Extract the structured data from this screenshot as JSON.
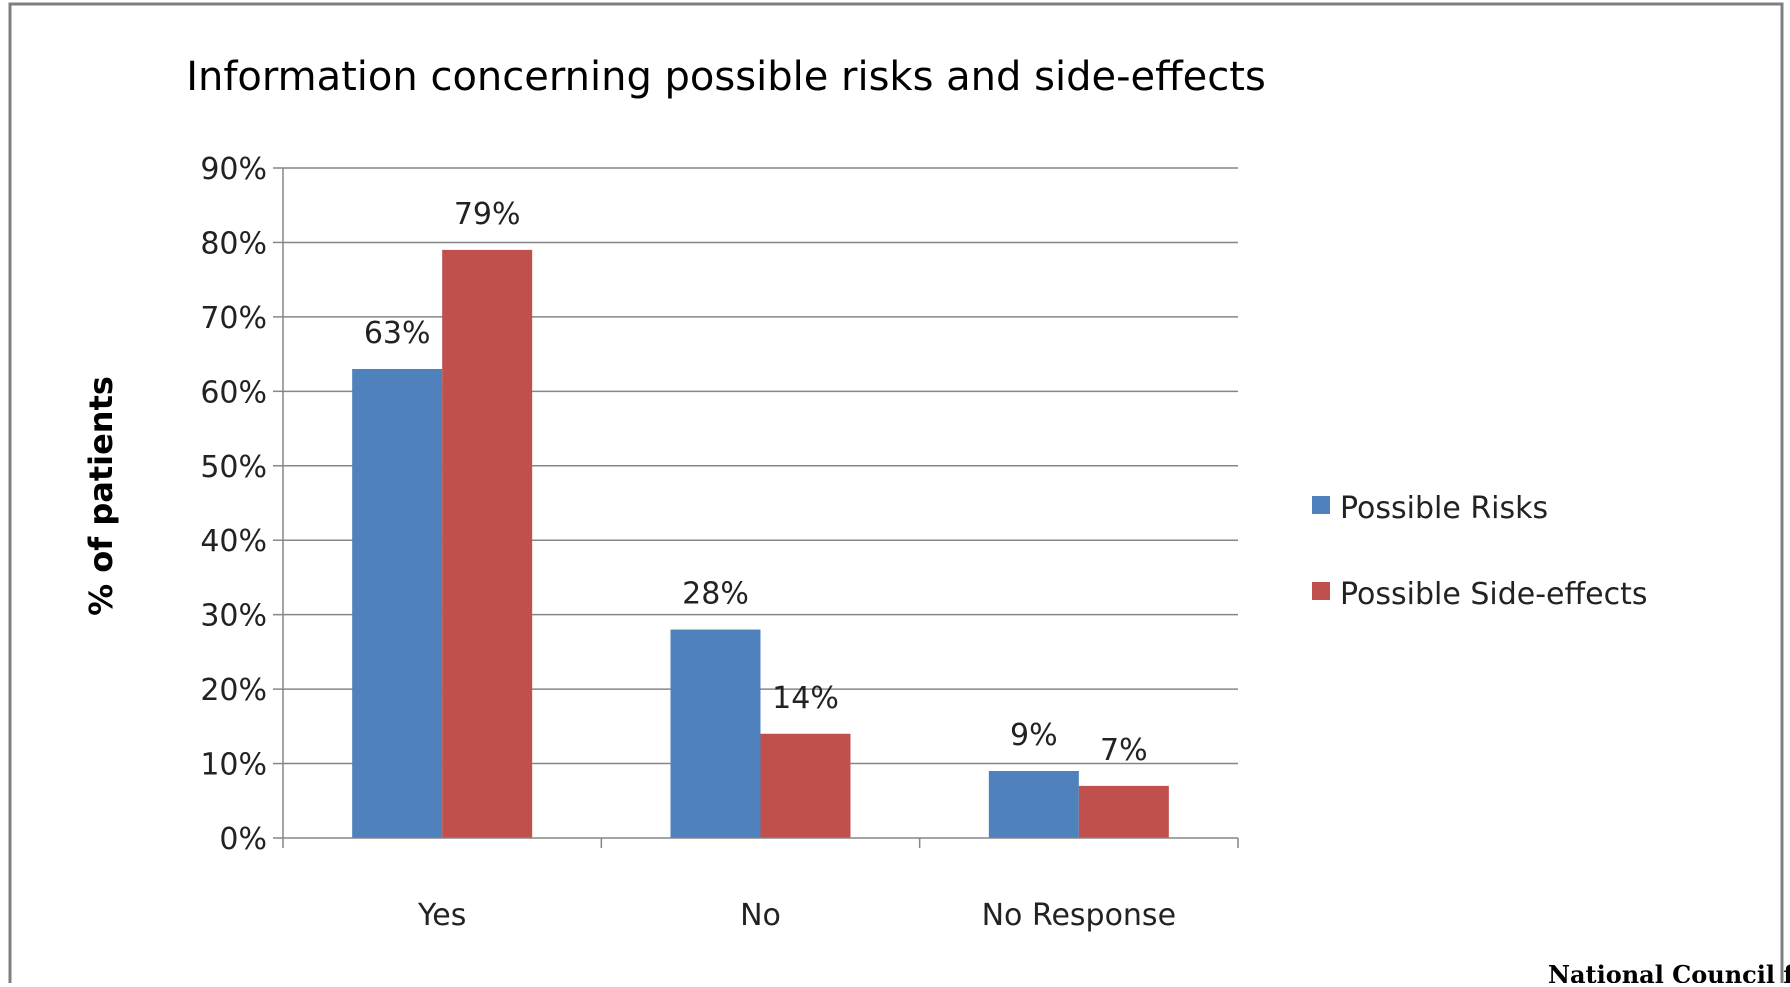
{
  "chart_data": {
    "type": "bar",
    "title": "Information concerning possible risks and side-effects",
    "xlabel": "",
    "ylabel": "% of patients",
    "categories": [
      "Yes",
      "No",
      "No Response"
    ],
    "series": [
      {
        "name": "Possible Risks",
        "values": [
          63,
          28,
          9
        ],
        "labels": [
          "63%",
          "28%",
          "9%"
        ],
        "color": "#4f81bd"
      },
      {
        "name": "Possible Side-effects",
        "values": [
          79,
          14,
          7
        ],
        "labels": [
          "79%",
          "14%",
          "7%"
        ],
        "color": "#c0504d"
      }
    ],
    "ylim": [
      0,
      90
    ],
    "yticks": [
      0,
      10,
      20,
      30,
      40,
      50,
      60,
      70,
      80,
      90
    ],
    "ytick_labels": [
      "0%",
      "10%",
      "20%",
      "30%",
      "40%",
      "50%",
      "60%",
      "70%",
      "80%",
      "90%"
    ],
    "grid": true,
    "legend_position": "right"
  },
  "footer_text": "National Council f"
}
